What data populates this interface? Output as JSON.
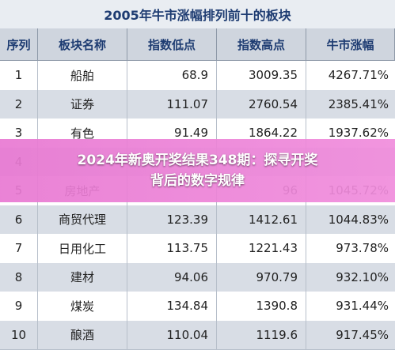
{
  "table": {
    "title": "2005年牛市涨幅排列前十的板块",
    "headers": [
      "序列",
      "板块名称",
      "指数低点",
      "指数高点",
      "牛市涨幅"
    ],
    "rows": [
      {
        "seq": "1",
        "name": "船舶",
        "low": "68.9",
        "high": "3009.35",
        "gain": "4267.71%"
      },
      {
        "seq": "2",
        "name": "证券",
        "low": "111.07",
        "high": "2760.54",
        "gain": "2385.41%"
      },
      {
        "seq": "3",
        "name": "有色",
        "low": "91.49",
        "high": "1864.22",
        "gain": "1937.62%"
      },
      {
        "seq": "4",
        "name": "",
        "low": "",
        "high": "",
        "gain": ""
      },
      {
        "seq": "5",
        "name": "房地产",
        "low": "",
        "high": "96",
        "gain": "1045.72%"
      },
      {
        "seq": "6",
        "name": "商贸代理",
        "low": "123.39",
        "high": "1412.61",
        "gain": "1044.83%"
      },
      {
        "seq": "7",
        "name": "日用化工",
        "low": "113.75",
        "high": "1221.43",
        "gain": "973.78%"
      },
      {
        "seq": "8",
        "name": "建材",
        "low": "94.06",
        "high": "970.79",
        "gain": "932.10%"
      },
      {
        "seq": "9",
        "name": "煤炭",
        "low": "134.84",
        "high": "1390.8",
        "gain": "931.44%"
      },
      {
        "seq": "10",
        "name": "酿酒",
        "low": "110.04",
        "high": "1119.6",
        "gain": "917.45%"
      }
    ]
  },
  "overlay": {
    "line1": "2024年新奥开奖结果348期：探寻开奖",
    "line2": "背后的数字规律"
  }
}
